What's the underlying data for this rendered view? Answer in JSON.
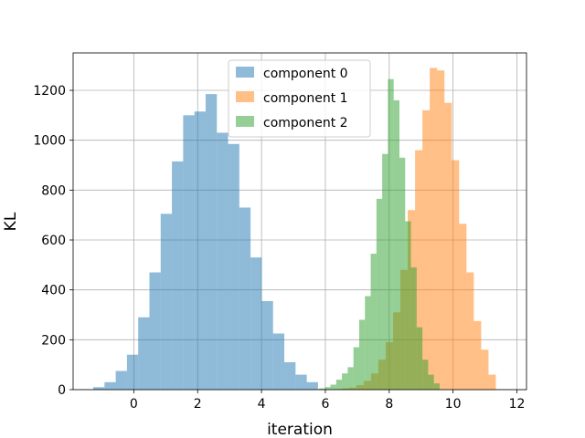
{
  "chart_data": {
    "type": "histogram",
    "xlabel": "iteration",
    "ylabel": "KL",
    "xlim": [
      -1.9,
      12.3
    ],
    "ylim": [
      0,
      1350
    ],
    "xticks": [
      0,
      2,
      4,
      6,
      8,
      10,
      12
    ],
    "yticks": [
      0,
      200,
      400,
      600,
      800,
      1000,
      1200
    ],
    "grid": true,
    "legend_position": "top-center",
    "series": [
      {
        "name": "component 0",
        "color": "#1f77b4",
        "alpha": 0.5,
        "bin_edges": [
          -1.27,
          -0.918,
          -0.566,
          -0.214,
          0.138,
          0.49,
          0.842,
          1.194,
          1.546,
          1.898,
          2.25,
          2.602,
          2.954,
          3.306,
          3.658,
          4.01,
          4.362,
          4.714,
          5.066,
          5.418,
          5.77
        ],
        "counts": [
          10,
          30,
          75,
          140,
          290,
          470,
          705,
          915,
          1100,
          1115,
          1185,
          1030,
          985,
          730,
          530,
          355,
          225,
          110,
          60,
          30
        ]
      },
      {
        "name": "component 1",
        "color": "#ff7f0e",
        "alpha": 0.5,
        "bin_edges": [
          6.28,
          6.51,
          6.74,
          6.97,
          7.2,
          7.43,
          7.66,
          7.89,
          8.12,
          8.35,
          8.58,
          8.81,
          9.04,
          9.27,
          9.5,
          9.73,
          9.96,
          10.19,
          10.42,
          10.65,
          10.88,
          11.11,
          11.34
        ],
        "counts": [
          2,
          5,
          8,
          18,
          35,
          65,
          120,
          190,
          310,
          480,
          720,
          960,
          1120,
          1290,
          1280,
          1150,
          920,
          665,
          470,
          275,
          160,
          60
        ]
      },
      {
        "name": "component 2",
        "color": "#2ca02c",
        "alpha": 0.5,
        "bin_edges": [
          5.8,
          5.98,
          6.16,
          6.34,
          6.52,
          6.7,
          6.88,
          7.06,
          7.24,
          7.42,
          7.6,
          7.78,
          7.96,
          8.14,
          8.32,
          8.5,
          8.68,
          8.86,
          9.04,
          9.22,
          9.4,
          9.58
        ],
        "counts": [
          5,
          10,
          20,
          40,
          65,
          90,
          170,
          280,
          375,
          545,
          765,
          945,
          1245,
          1160,
          930,
          675,
          490,
          250,
          120,
          60,
          25
        ]
      }
    ]
  }
}
